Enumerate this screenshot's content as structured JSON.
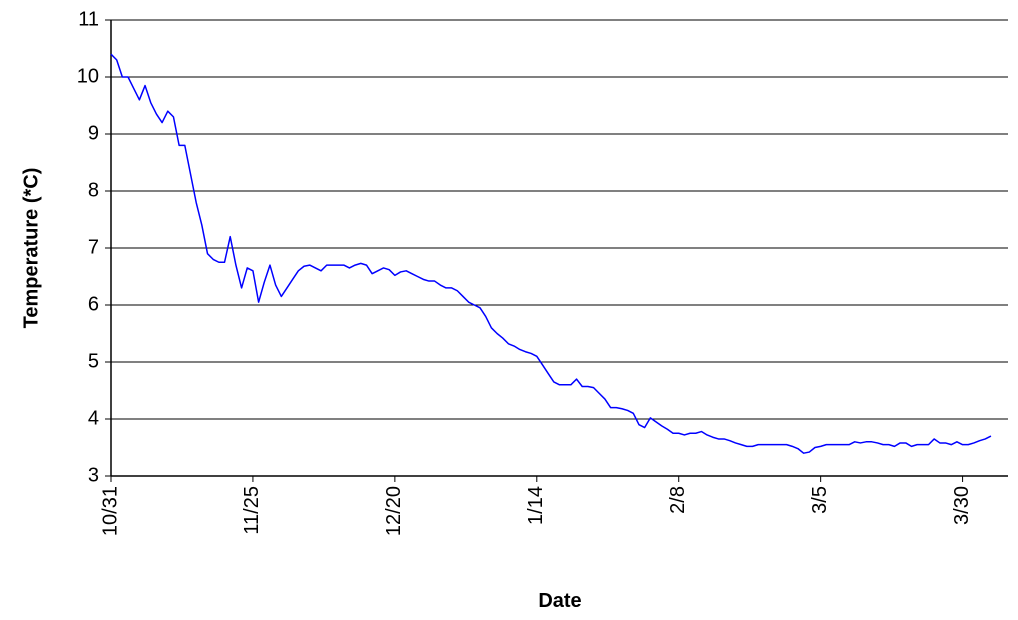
{
  "chart_data": {
    "type": "line",
    "x_label": "Date",
    "y_label": "Temperature  (*C)",
    "color": "#0000ff",
    "grid": true,
    "ylim": [
      3,
      11
    ],
    "yticks": [
      3,
      4,
      5,
      6,
      7,
      8,
      9,
      10,
      11
    ],
    "categories": [
      "10/31",
      null,
      null,
      null,
      null,
      null,
      null,
      null,
      null,
      null,
      null,
      null,
      null,
      null,
      null,
      null,
      null,
      null,
      null,
      null,
      null,
      null,
      null,
      null,
      null,
      "11/25",
      null,
      null,
      null,
      null,
      null,
      null,
      null,
      null,
      null,
      null,
      null,
      null,
      null,
      null,
      null,
      null,
      null,
      null,
      null,
      null,
      null,
      null,
      null,
      null,
      "12/20",
      null,
      null,
      null,
      null,
      null,
      null,
      null,
      null,
      null,
      null,
      null,
      null,
      null,
      null,
      null,
      null,
      null,
      null,
      null,
      null,
      null,
      null,
      null,
      null,
      "1/14",
      null,
      null,
      null,
      null,
      null,
      null,
      null,
      null,
      null,
      null,
      null,
      null,
      null,
      null,
      null,
      null,
      null,
      null,
      null,
      null,
      null,
      null,
      null,
      null,
      "2/8",
      null,
      null,
      null,
      null,
      null,
      null,
      null,
      null,
      null,
      null,
      null,
      null,
      null,
      null,
      null,
      null,
      null,
      null,
      null,
      null,
      null,
      null,
      null,
      null,
      "3/5",
      null,
      null,
      null,
      null,
      null,
      null,
      null,
      null,
      null,
      null,
      null,
      null,
      null,
      null,
      null,
      null,
      null,
      null,
      null,
      null,
      null,
      null,
      null,
      null,
      "3/30",
      null,
      null,
      null,
      null,
      null
    ],
    "values": [
      10.4,
      10.3,
      10.0,
      10.0,
      9.8,
      9.6,
      9.85,
      9.55,
      9.35,
      9.2,
      9.4,
      9.3,
      8.8,
      8.8,
      8.3,
      7.8,
      7.4,
      6.9,
      6.8,
      6.75,
      6.75,
      7.2,
      6.7,
      6.3,
      6.65,
      6.6,
      6.05,
      6.4,
      6.7,
      6.35,
      6.15,
      6.3,
      6.45,
      6.6,
      6.68,
      6.7,
      6.65,
      6.6,
      6.7,
      6.7,
      6.7,
      6.7,
      6.65,
      6.7,
      6.73,
      6.7,
      6.55,
      6.6,
      6.65,
      6.62,
      6.52,
      6.58,
      6.6,
      6.55,
      6.5,
      6.45,
      6.42,
      6.42,
      6.35,
      6.3,
      6.3,
      6.25,
      6.15,
      6.05,
      6.0,
      5.95,
      5.8,
      5.6,
      5.5,
      5.42,
      5.32,
      5.28,
      5.22,
      5.18,
      5.15,
      5.1,
      4.95,
      4.8,
      4.65,
      4.6,
      4.6,
      4.6,
      4.7,
      4.57,
      4.57,
      4.55,
      4.45,
      4.35,
      4.2,
      4.2,
      4.18,
      4.15,
      4.1,
      3.9,
      3.85,
      4.02,
      3.95,
      3.88,
      3.82,
      3.75,
      3.75,
      3.72,
      3.75,
      3.75,
      3.78,
      3.72,
      3.68,
      3.65,
      3.65,
      3.62,
      3.58,
      3.55,
      3.52,
      3.52,
      3.55,
      3.55,
      3.55,
      3.55,
      3.55,
      3.55,
      3.52,
      3.48,
      3.4,
      3.42,
      3.5,
      3.52,
      3.55,
      3.55,
      3.55,
      3.55,
      3.55,
      3.6,
      3.58,
      3.6,
      3.6,
      3.58,
      3.55,
      3.55,
      3.52,
      3.58,
      3.58,
      3.52,
      3.55,
      3.55,
      3.55,
      3.65,
      3.58,
      3.58,
      3.55,
      3.6,
      3.55,
      3.55,
      3.58,
      3.62,
      3.65,
      3.7
    ]
  }
}
